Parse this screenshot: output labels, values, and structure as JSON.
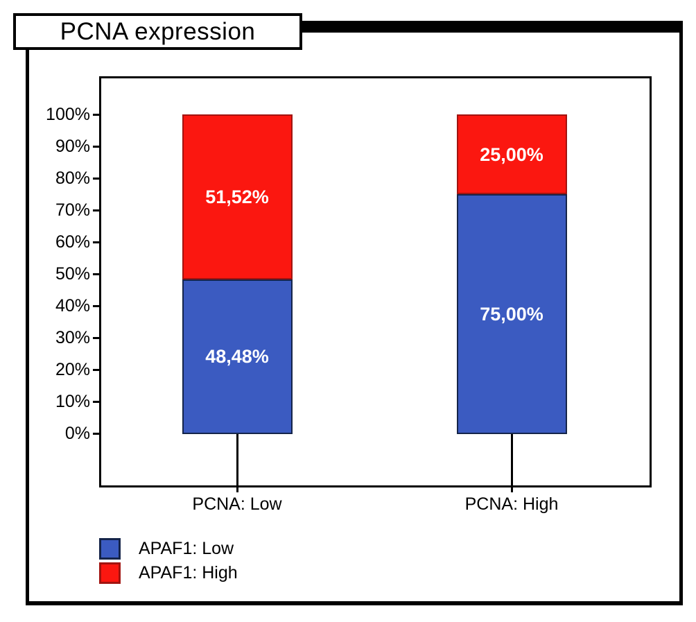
{
  "title": "PCNA expression",
  "chart_data": {
    "type": "bar",
    "subtype": "stacked-100-percent",
    "title": "PCNA expression",
    "categories": [
      "PCNA: Low",
      "PCNA: High"
    ],
    "series": [
      {
        "name": "APAF1: Low",
        "color": "#3B5BC1",
        "border_color": "#152449",
        "values": [
          48.48,
          75.0
        ],
        "labels": [
          "48,48%",
          "75,00%"
        ]
      },
      {
        "name": "APAF1: High",
        "color": "#FB1710",
        "border_color": "#A21410",
        "values": [
          51.52,
          25.0
        ],
        "labels": [
          "51,52%",
          "25,00%"
        ]
      }
    ],
    "y_ticks": [
      "100%",
      "90%",
      "80%",
      "70%",
      "60%",
      "50%",
      "40%",
      "30%",
      "20%",
      "10%",
      "0%"
    ],
    "ylim": [
      0,
      100
    ],
    "xlabel": "",
    "ylabel": "",
    "grid": false,
    "legend_position": "bottom-left"
  },
  "legend": {
    "items": [
      {
        "label": "APAF1: Low",
        "color": "#3B5BC1",
        "border_color": "#152449"
      },
      {
        "label": "APAF1: High",
        "color": "#FB1710",
        "border_color": "#A21410"
      }
    ]
  }
}
